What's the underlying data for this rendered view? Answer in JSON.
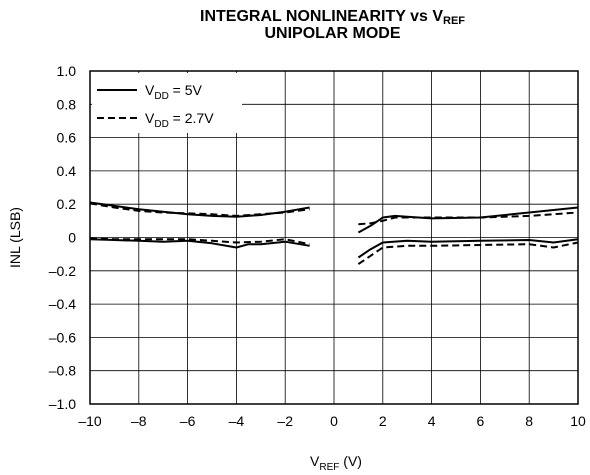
{
  "chart_data": {
    "type": "line",
    "title_line1": "INTEGRAL NONLINEARITY vs V",
    "title_line1_sub": "REF",
    "title_line2": "UNIPOLAR MODE",
    "xlabel_main": "V",
    "xlabel_sub": "REF",
    "xlabel_unit": " (V)",
    "ylabel": "INL (LSB)",
    "xlim": [
      -10,
      10
    ],
    "ylim": [
      -1.0,
      1.0
    ],
    "x_ticks": [
      -10,
      -8,
      -6,
      -4,
      -2,
      0,
      2,
      4,
      6,
      8,
      10
    ],
    "x_tick_labels": [
      "–10",
      "–8",
      "–6",
      "–4",
      "–2",
      "0",
      "2",
      "4",
      "6",
      "8",
      "10"
    ],
    "y_ticks": [
      1.0,
      0.8,
      0.6,
      0.4,
      0.2,
      0,
      -0.2,
      -0.4,
      -0.6,
      -0.8,
      -1.0
    ],
    "y_tick_labels": [
      "1.0",
      "0.8",
      "0.6",
      "0.4",
      "0.2",
      "0",
      "–0.2",
      "–0.4",
      "–0.6",
      "–0.8",
      "–1.0"
    ],
    "grid": true,
    "legend_position": "top-left",
    "legend": [
      {
        "style": "solid",
        "label_main": "V",
        "label_sub": "DD",
        "label_rest": " = 5V"
      },
      {
        "style": "dashed",
        "label_main": "V",
        "label_sub": "DD",
        "label_rest": " = 2.7V"
      }
    ],
    "series": [
      {
        "style": "solid",
        "segments": [
          [
            [
              -10,
              0.21
            ],
            [
              -9,
              0.19
            ],
            [
              -8,
              0.17
            ],
            [
              -7,
              0.155
            ],
            [
              -6,
              0.14
            ],
            [
              -5,
              0.13
            ],
            [
              -4,
              0.125
            ],
            [
              -3,
              0.135
            ],
            [
              -2,
              0.155
            ],
            [
              -1,
              0.18
            ]
          ],
          [
            [
              -10,
              -0.01
            ],
            [
              -9,
              -0.015
            ],
            [
              -8,
              -0.02
            ],
            [
              -7,
              -0.025
            ],
            [
              -6,
              -0.02
            ],
            [
              -5,
              -0.035
            ],
            [
              -4,
              -0.06
            ],
            [
              -3.5,
              -0.04
            ],
            [
              -3,
              -0.04
            ],
            [
              -2,
              -0.025
            ],
            [
              -1,
              -0.05
            ]
          ],
          [
            [
              1,
              0.03
            ],
            [
              1.5,
              0.07
            ],
            [
              2,
              0.12
            ],
            [
              2.5,
              0.13
            ],
            [
              3,
              0.125
            ],
            [
              4,
              0.115
            ],
            [
              6,
              0.12
            ],
            [
              8,
              0.15
            ],
            [
              10,
              0.18
            ]
          ],
          [
            [
              1,
              -0.12
            ],
            [
              1.5,
              -0.07
            ],
            [
              2,
              -0.03
            ],
            [
              3,
              -0.02
            ],
            [
              4,
              -0.025
            ],
            [
              6,
              -0.02
            ],
            [
              8,
              -0.015
            ],
            [
              9,
              -0.03
            ],
            [
              10,
              -0.01
            ]
          ]
        ]
      },
      {
        "style": "dashed",
        "segments": [
          [
            [
              -10,
              0.205
            ],
            [
              -9,
              0.18
            ],
            [
              -8,
              0.16
            ],
            [
              -7,
              0.15
            ],
            [
              -6,
              0.145
            ],
            [
              -5,
              0.14
            ],
            [
              -4,
              0.13
            ],
            [
              -3,
              0.14
            ],
            [
              -2,
              0.15
            ],
            [
              -1,
              0.17
            ]
          ],
          [
            [
              -10,
              -0.005
            ],
            [
              -9,
              -0.01
            ],
            [
              -8,
              -0.01
            ],
            [
              -7,
              -0.01
            ],
            [
              -6,
              -0.01
            ],
            [
              -5,
              -0.02
            ],
            [
              -4,
              -0.03
            ],
            [
              -3,
              -0.025
            ],
            [
              -2,
              -0.01
            ],
            [
              -1,
              -0.04
            ]
          ],
          [
            [
              1,
              0.08
            ],
            [
              1.5,
              0.085
            ],
            [
              2,
              0.1
            ],
            [
              2.5,
              0.12
            ],
            [
              3,
              0.12
            ],
            [
              4,
              0.12
            ],
            [
              6,
              0.12
            ],
            [
              8,
              0.13
            ],
            [
              10,
              0.15
            ]
          ],
          [
            [
              1,
              -0.16
            ],
            [
              1.5,
              -0.11
            ],
            [
              2,
              -0.06
            ],
            [
              3,
              -0.05
            ],
            [
              4,
              -0.05
            ],
            [
              6,
              -0.045
            ],
            [
              8,
              -0.04
            ],
            [
              9,
              -0.06
            ],
            [
              10,
              -0.03
            ]
          ]
        ]
      }
    ]
  }
}
